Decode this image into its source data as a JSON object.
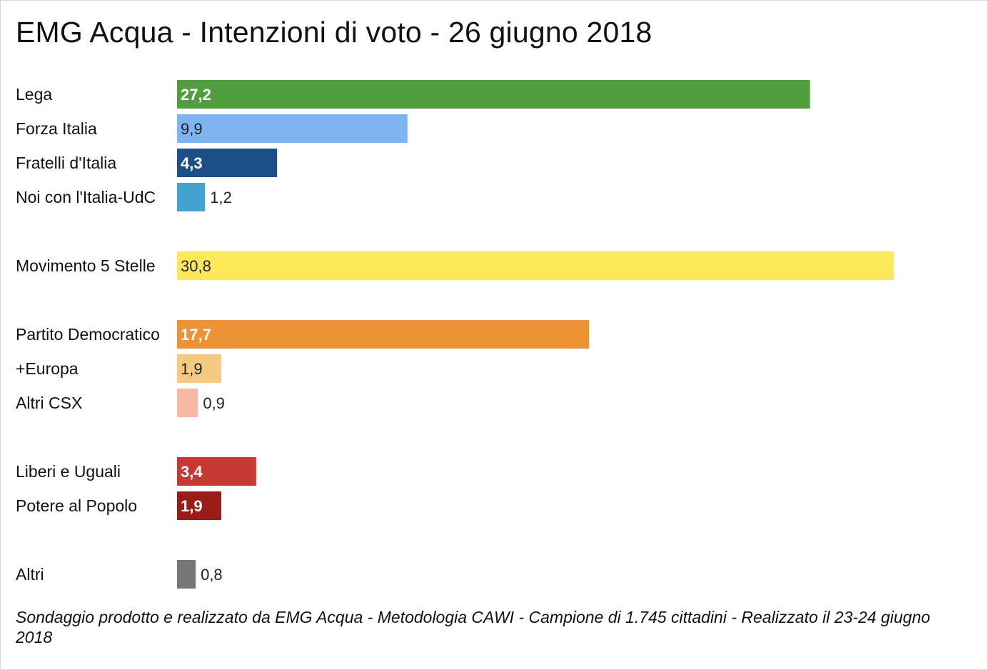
{
  "chart_data": {
    "type": "bar",
    "orientation": "horizontal",
    "title": "EMG Acqua - Intenzioni di voto - 26 giugno 2018",
    "xlabel": "",
    "ylabel": "",
    "grid": false,
    "xlim": [
      0,
      34
    ],
    "groups": [
      [
        "Lega",
        "Forza Italia",
        "Fratelli d'Italia",
        "Noi con l'Italia-UdC"
      ],
      [
        "Movimento 5 Stelle"
      ],
      [
        "Partito Democratico",
        "+Europa",
        "Altri CSX"
      ],
      [
        "Liberi e Uguali",
        "Potere al Popolo"
      ],
      [
        "Altri"
      ]
    ],
    "categories": [
      "Lega",
      "Forza Italia",
      "Fratelli d'Italia",
      "Noi con l'Italia-UdC",
      "Movimento 5 Stelle",
      "Partito Democratico",
      "+Europa",
      "Altri CSX",
      "Liberi e Uguali",
      "Potere al Popolo",
      "Altri"
    ],
    "values": [
      27.2,
      9.9,
      4.3,
      1.2,
      30.8,
      17.7,
      1.9,
      0.9,
      3.4,
      1.9,
      0.8
    ],
    "value_labels": [
      "27,2",
      "9,9",
      "4,3",
      "1,2",
      "30,8",
      "17,7",
      "1,9",
      "0,9",
      "3,4",
      "1,9",
      "0,8"
    ],
    "colors": [
      "#519e3e",
      "#7fb4f2",
      "#1b4f87",
      "#44a2ce",
      "#fde85a",
      "#ed9235",
      "#f5c982",
      "#f6b9a1",
      "#c93933",
      "#9b1c16",
      "#777777"
    ],
    "label_colors": [
      "#ffffff",
      "#222222",
      "#ffffff",
      "#222222",
      "#222222",
      "#ffffff",
      "#222222",
      "#222222",
      "#ffffff",
      "#ffffff",
      "#222222"
    ]
  },
  "footnote": "Sondaggio prodotto e realizzato da EMG Acqua - Metodologia CAWI - Campione di 1.745 cittadini - Realizzato il 23-24 giugno 2018"
}
